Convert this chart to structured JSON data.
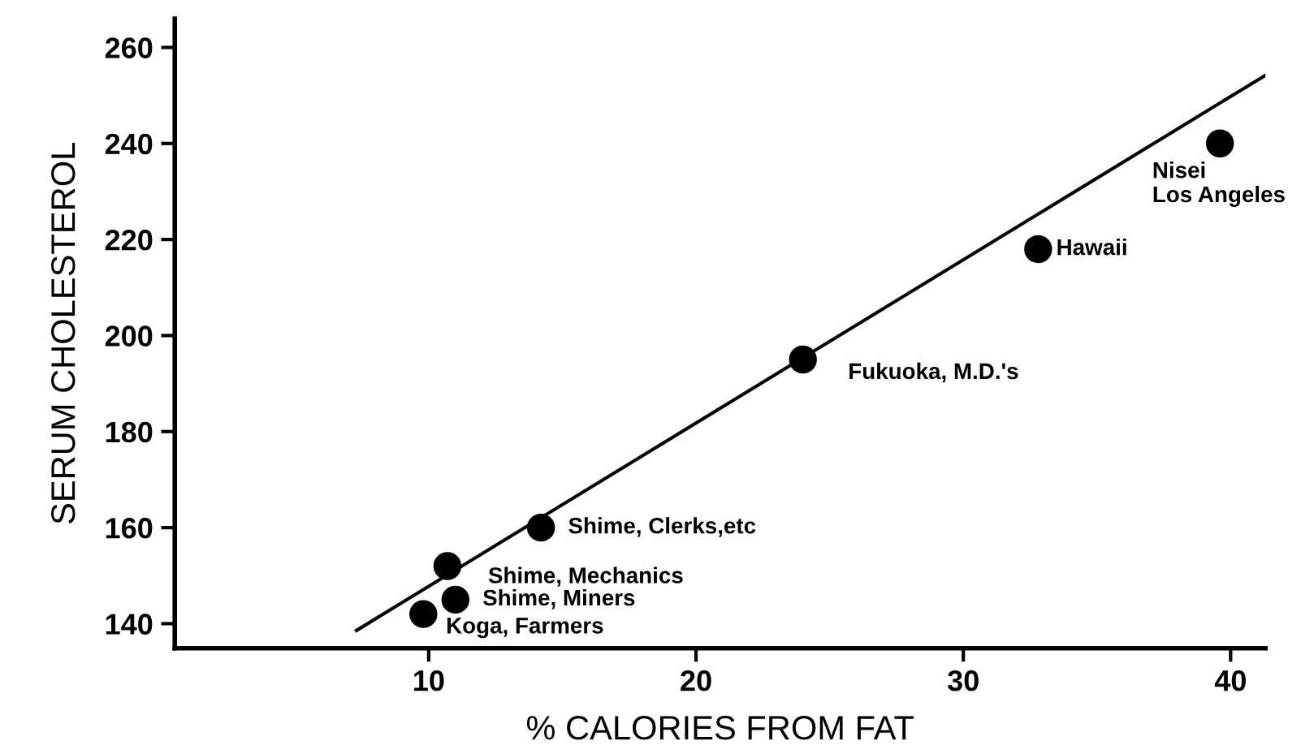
{
  "chart_data": {
    "type": "scatter",
    "xlabel": "% CALORIES FROM FAT",
    "ylabel": "SERUM CHOLESTEROL",
    "xlim": [
      0.5,
      41.3
    ],
    "ylim": [
      134.9,
      266
    ],
    "xticks": [
      10,
      20,
      30,
      40
    ],
    "yticks": [
      140,
      160,
      180,
      200,
      220,
      240,
      260
    ],
    "grid": false,
    "series": [
      {
        "marker": "circle",
        "color": "#000000",
        "x": [
          9.8,
          10.7,
          11.0,
          14.2,
          24.0,
          32.8,
          39.6
        ],
        "values": [
          142,
          152,
          145,
          160,
          195,
          218,
          240
        ]
      },
      {
        "type": "line",
        "marker": "none",
        "color": "#000000",
        "x": [
          7.3,
          41.3
        ],
        "values": [
          138.6,
          254.2
        ]
      }
    ],
    "annotations": [
      {
        "text": "Koga, Farmers",
        "x": 9.8,
        "y": 142
      },
      {
        "text": "Shime, Mechanics",
        "x": 10.7,
        "y": 152
      },
      {
        "text": "Shime, Miners",
        "x": 11.0,
        "y": 145
      },
      {
        "text": "Shime, Clerks,etc",
        "x": 14.2,
        "y": 160
      },
      {
        "text": "Fukuoka, M.D.'s",
        "x": 24.0,
        "y": 195
      },
      {
        "text": "Hawaii",
        "x": 32.8,
        "y": 218
      },
      {
        "text": "Nisei\nLos Angeles",
        "x": 39.6,
        "y": 240
      }
    ]
  }
}
